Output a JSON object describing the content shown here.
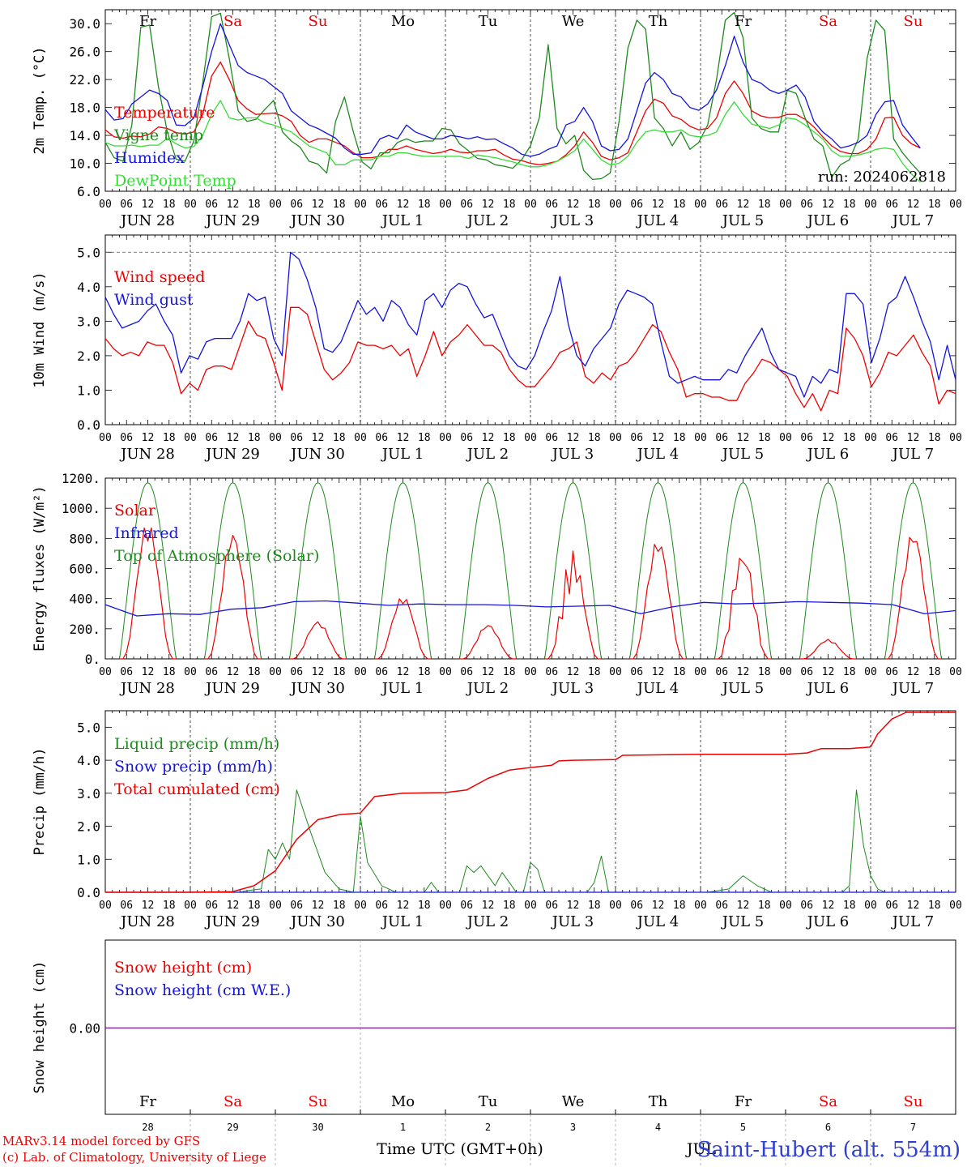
{
  "page": {
    "footer_line1": "MARv3.14 model forced by GFS",
    "footer_line2": "(c) Lab. of Climatology, University of Liege",
    "station": "Saint-Hubert (alt. 554m)",
    "xaxis_title": "Time UTC (GMT+0h)",
    "run_label": "run: 2024062818",
    "month_label": "JUL"
  },
  "colors": {
    "red": "#ee0000",
    "green": "#1e8a1e",
    "blue": "#1414dc",
    "lightgreen": "#33dd33",
    "purple": "#7a2a8a"
  },
  "chart_data": [
    {
      "type": "line",
      "panel": "temperature",
      "ylabel": "2m Temp. (°C)",
      "ylim": [
        6,
        32
      ],
      "yticks": [
        6,
        10,
        14,
        18,
        22,
        26,
        30
      ],
      "ytick_labels": [
        "6.0",
        "10.0",
        "14.0",
        "18.0",
        "22.0",
        "26.0",
        "30.0"
      ],
      "day_names": [
        "Fr",
        "Sa",
        "Su",
        "Mo",
        "Tu",
        "We",
        "Th",
        "Fr",
        "Sa",
        "Su"
      ],
      "day_colors": [
        "black",
        "red",
        "red",
        "black",
        "black",
        "black",
        "black",
        "black",
        "red",
        "red"
      ],
      "hour_ticks": [
        "00",
        "06",
        "12",
        "18"
      ],
      "date_labels": [
        "JUN 28",
        "JUN 29",
        "JUN 30",
        "JUL  1",
        "JUL  2",
        "JUL  3",
        "JUL  4",
        "JUL  5",
        "JUL  6",
        "JUL  7"
      ],
      "series": [
        {
          "name": "Temperature",
          "color": "red",
          "values": [
            14.8,
            13.8,
            13.6,
            13.9,
            13.8,
            14.2,
            15.2,
            15.0,
            14.4,
            14.2,
            14.5,
            17.0,
            22.5,
            24.5,
            22.0,
            19.0,
            17.8,
            17.0,
            17.1,
            17.2,
            16.8,
            16.0,
            14.0,
            13.0,
            13.5,
            13.5,
            13.0,
            12.5,
            11.5,
            10.8,
            10.8,
            11.0,
            12.0,
            12.0,
            12.5,
            12.0,
            11.7,
            11.4,
            11.6,
            12.0,
            11.6,
            11.5,
            11.8,
            11.8,
            12.0,
            11.2,
            10.6,
            10.4,
            10.0,
            9.8,
            10.0,
            10.3,
            11.2,
            12.5,
            14.5,
            13.0,
            11.0,
            10.5,
            10.8,
            11.5,
            14.5,
            17.5,
            19.2,
            18.6,
            16.8,
            16.3,
            15.3,
            14.8,
            15.0,
            16.5,
            20.0,
            21.8,
            20.0,
            17.5,
            16.8,
            16.5,
            16.6,
            17.0,
            17.0,
            16.3,
            15.2,
            13.8,
            12.5,
            11.7,
            11.4,
            11.4,
            12.0,
            13.5,
            16.5,
            16.6,
            14.0,
            12.8,
            12.2
          ]
        },
        {
          "name": "Vigne temp",
          "color": "green",
          "values": [
            13.0,
            10.8,
            10.3,
            15.5,
            29.5,
            29.8,
            21.0,
            14.5,
            10.6,
            10.3,
            13.2,
            21.5,
            31.0,
            31.5,
            25.0,
            17.5,
            16.0,
            16.3,
            17.7,
            19.0,
            14.5,
            13.2,
            12.3,
            10.3,
            9.9,
            8.6,
            16.0,
            19.5,
            14.5,
            10.2,
            9.2,
            11.5,
            11.5,
            13.0,
            13.5,
            13.0,
            13.2,
            13.2,
            15.0,
            14.8,
            12.8,
            11.8,
            10.7,
            10.5,
            9.8,
            9.6,
            9.3,
            10.5,
            12.5,
            16.5,
            27.0,
            15.0,
            12.8,
            14.0,
            9.0,
            7.7,
            7.8,
            8.6,
            16.0,
            26.5,
            30.5,
            29.2,
            16.5,
            15.0,
            12.5,
            14.5,
            12.0,
            13.0,
            15.5,
            22.0,
            30.5,
            31.6,
            28.0,
            16.5,
            15.0,
            14.5,
            14.5,
            20.5,
            20.0,
            16.5,
            13.5,
            12.5,
            8.0,
            9.8,
            10.5,
            13.5,
            25.0,
            30.5,
            29.0,
            13.5,
            11.5,
            10.0,
            8.6
          ]
        },
        {
          "name": "Humidex",
          "color": "blue",
          "values": [
            17.7,
            16.2,
            16.4,
            18.5,
            19.5,
            20.5,
            20.0,
            19.0,
            15.5,
            15.4,
            16.5,
            21.0,
            26.0,
            30.0,
            27.0,
            24.0,
            23.0,
            22.5,
            22.0,
            21.0,
            20.0,
            17.5,
            16.5,
            15.5,
            15.0,
            14.3,
            13.6,
            12.2,
            11.3,
            11.3,
            11.5,
            13.5,
            14.0,
            13.5,
            15.5,
            14.5,
            14.0,
            13.5,
            13.5,
            14.0,
            13.8,
            13.5,
            13.8,
            13.4,
            13.5,
            12.8,
            12.2,
            11.3,
            11.0,
            11.3,
            12.0,
            12.5,
            15.5,
            16.0,
            18.0,
            16.0,
            12.5,
            11.8,
            12.0,
            13.5,
            17.5,
            21.5,
            23.0,
            22.0,
            20.0,
            19.5,
            18.0,
            17.6,
            18.5,
            20.5,
            24.0,
            28.2,
            24.5,
            22.0,
            21.5,
            20.5,
            20.0,
            20.5,
            21.2,
            19.5,
            16.0,
            14.5,
            13.5,
            12.2,
            12.5,
            13.0,
            14.0,
            17.0,
            18.8,
            19.0,
            15.5,
            13.8,
            12.2
          ]
        },
        {
          "name": "DewPoint Temp",
          "color": "lightgreen",
          "values": [
            13.0,
            12.5,
            12.5,
            12.6,
            12.4,
            12.6,
            12.6,
            13.6,
            12.8,
            12.2,
            12.4,
            14.0,
            17.0,
            19.0,
            16.5,
            16.2,
            16.5,
            16.5,
            15.8,
            15.5,
            15.0,
            14.5,
            13.5,
            12.5,
            12.0,
            11.5,
            9.8,
            9.8,
            10.5,
            10.5,
            10.5,
            11.0,
            11.0,
            11.5,
            11.5,
            11.2,
            11.0,
            11.0,
            11.0,
            11.0,
            11.0,
            10.7,
            11.2,
            11.0,
            10.8,
            10.5,
            10.2,
            9.8,
            9.5,
            9.5,
            9.8,
            10.3,
            11.0,
            11.8,
            13.5,
            12.0,
            10.5,
            9.8,
            10.0,
            11.0,
            13.0,
            14.5,
            14.8,
            14.5,
            14.5,
            14.8,
            14.0,
            13.8,
            14.0,
            14.5,
            17.0,
            18.8,
            17.0,
            15.6,
            15.3,
            15.0,
            15.5,
            16.5,
            16.3,
            15.5,
            14.5,
            13.5,
            11.8,
            11.0,
            11.0,
            11.2,
            11.5,
            12.0,
            12.2,
            12.0,
            10.0,
            8.5,
            7.3
          ]
        }
      ]
    },
    {
      "type": "line",
      "panel": "wind",
      "ylabel": "10m Wind (m/s)",
      "ylim": [
        0,
        5.5
      ],
      "yticks": [
        0,
        1,
        2,
        3,
        4,
        5
      ],
      "ytick_labels": [
        "0.0",
        "1.0",
        "2.0",
        "3.0",
        "4.0",
        "5.0"
      ],
      "refline": 5.0,
      "series": [
        {
          "name": "Wind speed",
          "color": "red",
          "values": [
            2.5,
            2.2,
            2.0,
            2.1,
            2.0,
            2.4,
            2.3,
            2.3,
            1.8,
            0.9,
            1.2,
            1.0,
            1.6,
            1.7,
            1.7,
            1.6,
            2.3,
            3.0,
            2.6,
            2.5,
            1.8,
            1.0,
            3.4,
            3.4,
            3.2,
            2.4,
            1.6,
            1.3,
            1.5,
            1.8,
            2.4,
            2.3,
            2.3,
            2.2,
            2.3,
            2.0,
            2.2,
            1.4,
            2.0,
            2.7,
            2.0,
            2.4,
            2.6,
            2.9,
            2.6,
            2.3,
            2.3,
            2.1,
            1.6,
            1.3,
            1.1,
            1.1,
            1.4,
            1.7,
            2.1,
            2.2,
            2.4,
            1.4,
            1.2,
            1.5,
            1.3,
            1.7,
            1.8,
            2.1,
            2.5,
            2.9,
            2.7,
            2.1,
            1.6,
            0.8,
            0.9,
            0.9,
            0.8,
            0.8,
            0.7,
            0.7,
            1.2,
            1.5,
            1.9,
            1.8,
            1.6,
            1.4,
            0.9,
            0.5,
            0.9,
            0.4,
            1.0,
            0.9,
            2.8,
            2.5,
            2.0,
            1.1,
            1.5,
            2.1,
            2.0,
            2.3,
            2.6,
            2.1,
            1.7,
            0.6,
            1.0,
            0.9
          ]
        },
        {
          "name": "Wind gust",
          "color": "blue",
          "values": [
            3.7,
            3.2,
            2.8,
            2.9,
            3.0,
            3.3,
            3.5,
            3.0,
            2.6,
            1.5,
            2.0,
            1.9,
            2.4,
            2.5,
            2.5,
            2.5,
            3.0,
            3.8,
            3.6,
            3.7,
            2.5,
            2.0,
            5.0,
            4.8,
            4.2,
            3.4,
            2.2,
            2.1,
            2.4,
            3.0,
            3.6,
            3.2,
            3.4,
            3.0,
            3.6,
            3.4,
            2.9,
            2.6,
            3.6,
            3.8,
            3.4,
            3.9,
            4.1,
            4.0,
            3.5,
            3.1,
            3.2,
            2.6,
            2.0,
            1.7,
            1.6,
            2.0,
            2.7,
            3.3,
            4.3,
            2.9,
            2.0,
            1.7,
            2.2,
            2.5,
            2.8,
            3.5,
            3.9,
            3.8,
            3.7,
            3.5,
            2.4,
            1.4,
            1.2,
            1.3,
            1.4,
            1.3,
            1.3,
            1.3,
            1.6,
            1.5,
            2.0,
            2.4,
            2.8,
            2.1,
            1.6,
            1.5,
            1.4,
            0.8,
            1.4,
            1.2,
            1.6,
            1.5,
            3.8,
            3.8,
            3.5,
            1.8,
            2.5,
            3.5,
            3.7,
            4.3,
            3.7,
            3.0,
            2.4,
            1.3,
            2.3,
            1.3
          ]
        }
      ]
    },
    {
      "type": "line",
      "panel": "energy",
      "ylabel": "Energy fluxes (W/m²)",
      "ylim": [
        0,
        1200
      ],
      "yticks": [
        0,
        200,
        400,
        600,
        800,
        1000,
        1200
      ],
      "ytick_labels": [
        "0.",
        "200.",
        "400.",
        "600.",
        "800.",
        "1000.",
        "1200."
      ],
      "solar_peaks": [
        920,
        840,
        250,
        420,
        230,
        730,
        800,
        760,
        130,
        850
      ],
      "series": [
        {
          "name": "Solar",
          "color": "red"
        },
        {
          "name": "Infrared",
          "color": "blue",
          "values": [
            360,
            285,
            300,
            295,
            330,
            340,
            380,
            385,
            370,
            355,
            365,
            360,
            360,
            355,
            345,
            350,
            355,
            300,
            345,
            375,
            365,
            370,
            380,
            375,
            370,
            360,
            300,
            320
          ]
        },
        {
          "name": "Top of Atmosphere (Solar)",
          "color": "green",
          "peak": 1170
        }
      ]
    },
    {
      "type": "line",
      "panel": "precip",
      "ylabel": "Precip (mm/h)",
      "ylim": [
        0,
        5.5
      ],
      "yticks": [
        0,
        1,
        2,
        3,
        4,
        5
      ],
      "ytick_labels": [
        "0.0",
        "1.0",
        "2.0",
        "3.0",
        "4.0",
        "5.0"
      ],
      "series": [
        {
          "name": "Liquid precip (mm/h)",
          "color": "green"
        },
        {
          "name": "Snow precip (mm/h)",
          "color": "blue"
        },
        {
          "name": "Total cumulated (cm)",
          "color": "red",
          "values": [
            [
              0,
              0
            ],
            [
              24,
              0
            ],
            [
              36,
              0.02
            ],
            [
              42,
              0.2
            ],
            [
              48,
              0.65
            ],
            [
              54,
              1.6
            ],
            [
              60,
              2.2
            ],
            [
              66,
              2.35
            ],
            [
              72,
              2.4
            ],
            [
              76,
              2.9
            ],
            [
              84,
              3.0
            ],
            [
              96,
              3.02
            ],
            [
              102,
              3.1
            ],
            [
              108,
              3.45
            ],
            [
              114,
              3.7
            ],
            [
              120,
              3.78
            ],
            [
              126,
              3.85
            ],
            [
              128,
              3.98
            ],
            [
              132,
              4.0
            ],
            [
              144,
              4.02
            ],
            [
              146,
              4.15
            ],
            [
              168,
              4.18
            ],
            [
              192,
              4.18
            ],
            [
              198,
              4.22
            ],
            [
              202,
              4.35
            ],
            [
              210,
              4.35
            ],
            [
              216,
              4.4
            ],
            [
              218,
              4.8
            ],
            [
              222,
              5.25
            ],
            [
              226,
              5.45
            ],
            [
              240,
              5.45
            ]
          ]
        }
      ]
    },
    {
      "type": "line",
      "panel": "snow",
      "ylabel": "Snow height (cm)",
      "ytick_labels": [
        "0.00"
      ],
      "series": [
        {
          "name": "Snow height (cm)",
          "color": "red",
          "values": [
            0
          ]
        },
        {
          "name": "Snow height (cm W.E.)",
          "color": "blue",
          "values": [
            0
          ]
        }
      ],
      "day_names": [
        "Fr",
        "Sa",
        "Su",
        "Mo",
        "Tu",
        "We",
        "Th",
        "Fr",
        "Sa",
        "Su"
      ],
      "day_numbers": [
        "28",
        "29",
        "30",
        "1",
        "2",
        "3",
        "4",
        "5",
        "6",
        "7"
      ]
    }
  ]
}
